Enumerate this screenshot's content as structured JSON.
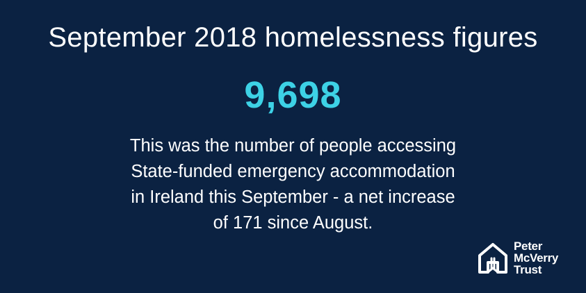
{
  "headline": "September 2018 homelessness figures",
  "figure": "9,698",
  "description": {
    "lines": [
      "This was the number of people accessing",
      "State-funded emergency accommodation",
      "in Ireland this September - a net increase",
      "of 171 since August."
    ]
  },
  "logo": {
    "icon": "house-icon",
    "lines": [
      "Peter",
      "McVerry",
      "Trust"
    ]
  },
  "colors": {
    "background": "#0b2242",
    "accent": "#3dd2e6",
    "text": "#ffffff"
  }
}
